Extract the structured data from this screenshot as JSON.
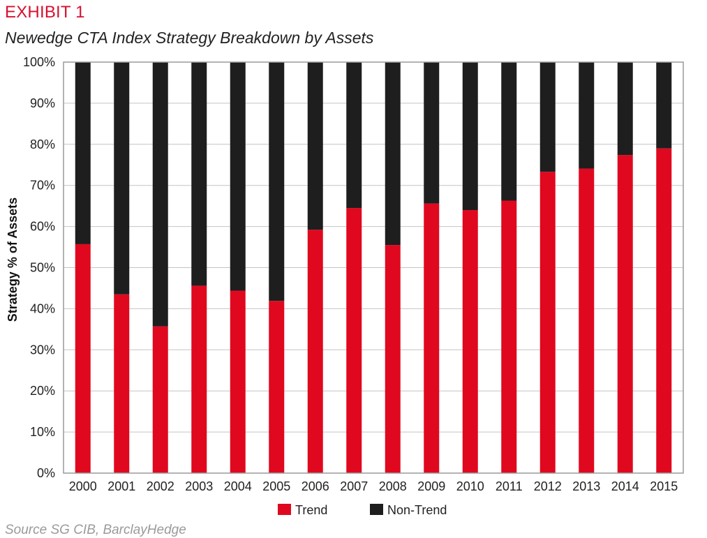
{
  "header": {
    "exhibit": "EXHIBIT 1",
    "source": "Source SG CIB, BarclayHedge"
  },
  "chart_data": {
    "type": "bar",
    "stacked": true,
    "title": "Newedge CTA Index Strategy Breakdown by Assets",
    "xlabel": "",
    "ylabel": "Strategy % of Assets",
    "ylim": [
      0,
      100
    ],
    "yticks": [
      "0%",
      "10%",
      "20%",
      "30%",
      "40%",
      "50%",
      "60%",
      "70%",
      "80%",
      "90%",
      "100%"
    ],
    "grid": true,
    "legend_position": "bottom-center",
    "categories": [
      "2000",
      "2001",
      "2002",
      "2003",
      "2004",
      "2005",
      "2006",
      "2007",
      "2008",
      "2009",
      "2010",
      "2011",
      "2012",
      "2013",
      "2014",
      "2015"
    ],
    "series": [
      {
        "name": "Trend",
        "color": "#e0081f",
        "values": [
          55.7,
          43.5,
          35.7,
          45.6,
          44.4,
          41.9,
          59.2,
          64.5,
          55.5,
          65.6,
          64.0,
          66.3,
          73.3,
          74.1,
          77.4,
          79.0
        ]
      },
      {
        "name": "Non-Trend",
        "color": "#1e1e1e",
        "values": [
          44.3,
          56.5,
          64.3,
          54.4,
          55.6,
          58.1,
          40.8,
          35.5,
          44.5,
          34.4,
          36.0,
          33.7,
          26.7,
          25.9,
          22.6,
          21.0
        ]
      }
    ]
  }
}
